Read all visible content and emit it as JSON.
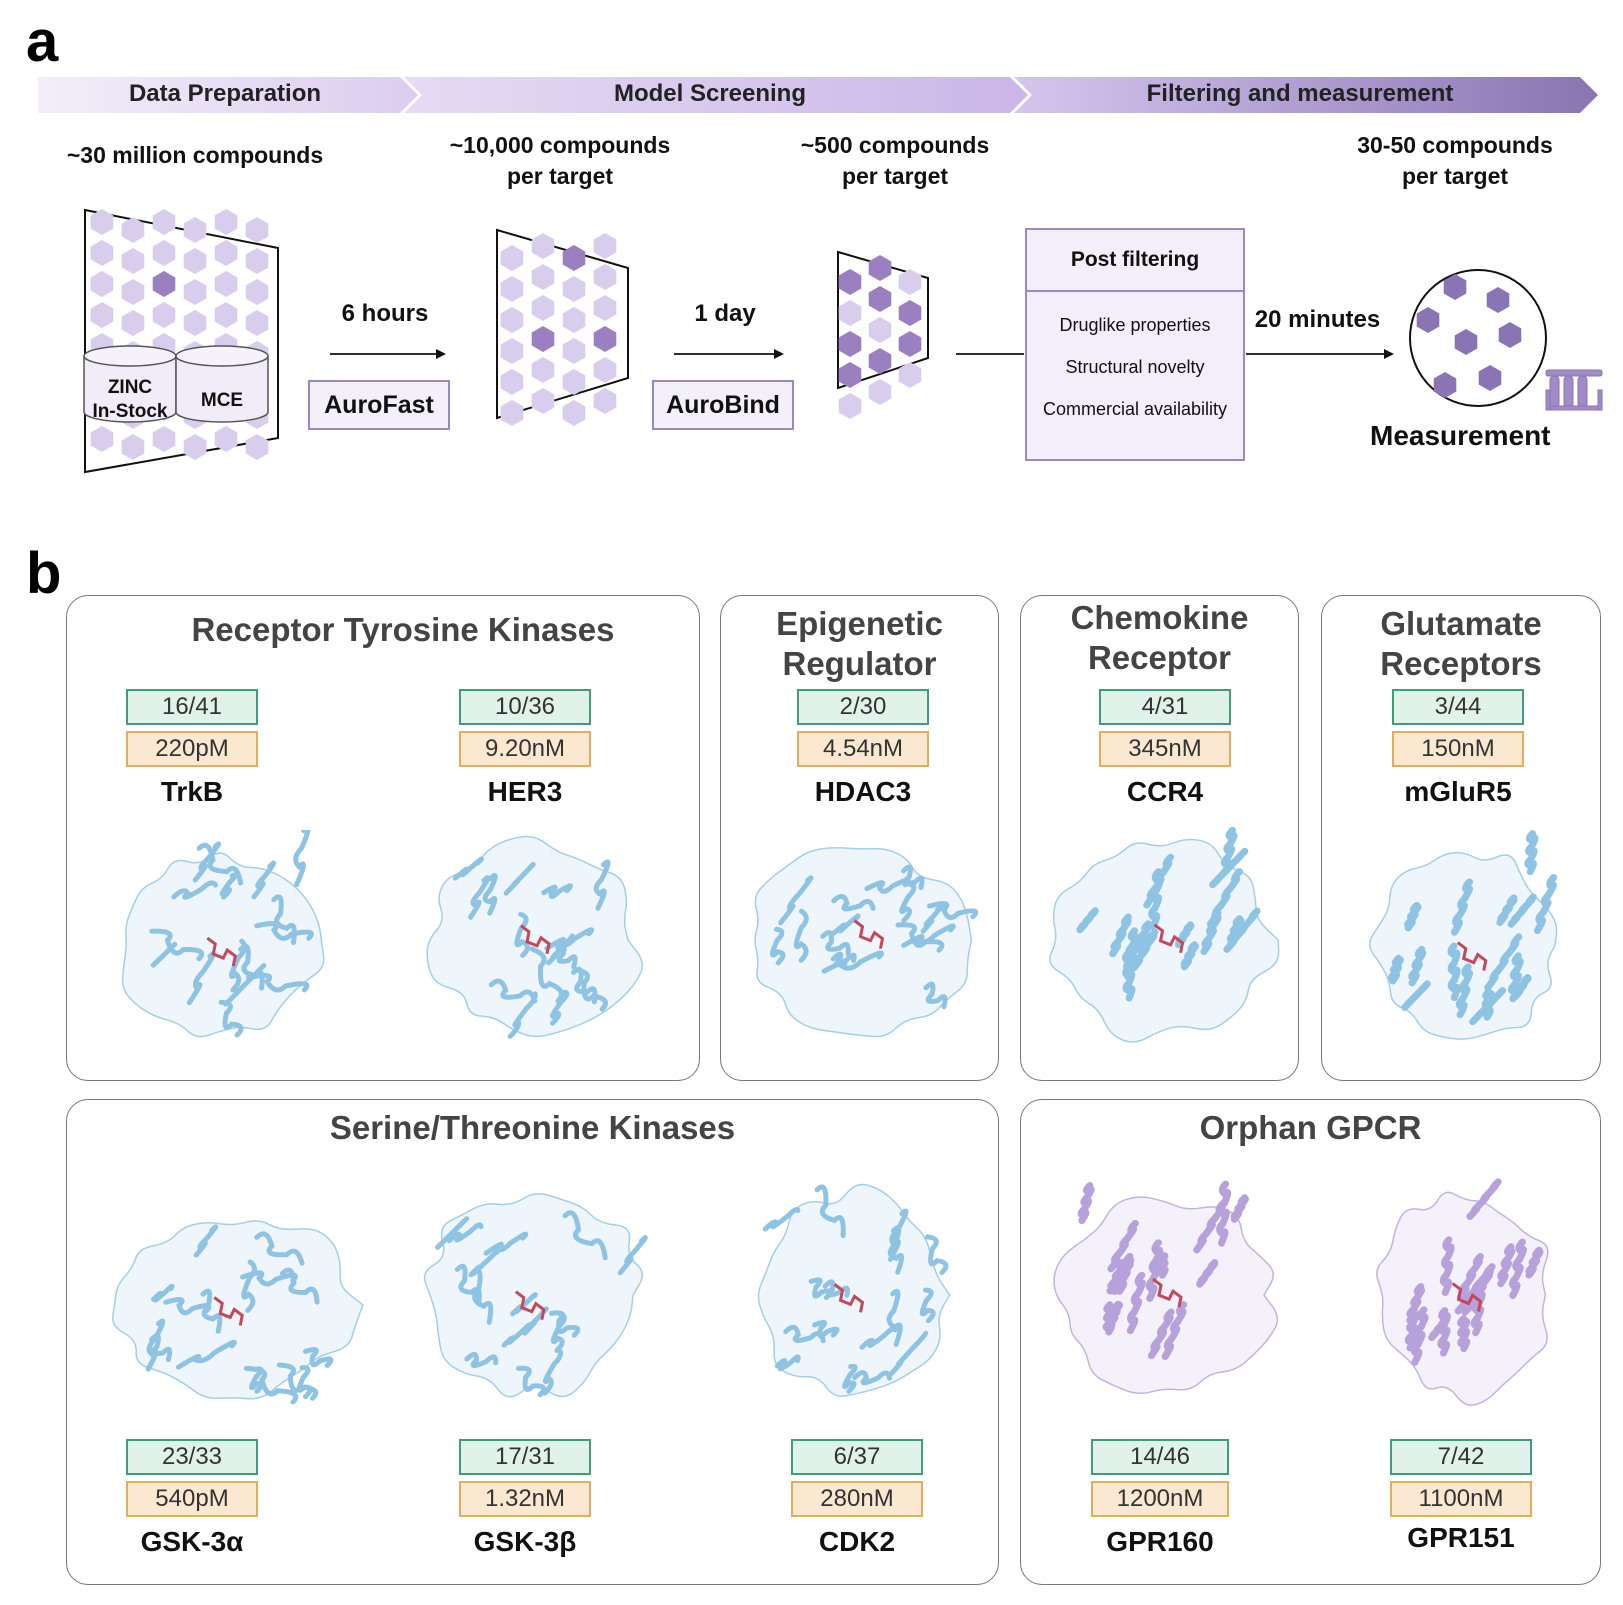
{
  "panel_a": {
    "letter": "a",
    "stages": [
      "Data Preparation",
      "Model Screening",
      "Filtering and measurement"
    ],
    "counts": {
      "start": "~30 million compounds",
      "after_aurofast": [
        "~10,000 compounds",
        "per target"
      ],
      "after_aurobind": [
        "~500 compounds",
        "per target"
      ],
      "final": [
        "30-50 compounds",
        "per target"
      ]
    },
    "databases": [
      "ZINC",
      "In-Stock",
      "MCE"
    ],
    "times": [
      "6 hours",
      "1 day",
      "20 minutes"
    ],
    "models": [
      "AuroFast",
      "AuroBind"
    ],
    "post_filtering": {
      "title": "Post filtering",
      "items": [
        "Druglike properties",
        "Structural novelty",
        "Commercial availability"
      ]
    },
    "measurement_label": "Measurement",
    "colors": {
      "purple_dark": "#9a80c0",
      "purple_light": "#d9cdee",
      "arrow_end": "#8a74b3"
    }
  },
  "panel_b": {
    "letter": "b",
    "groups": [
      {
        "title": "Receptor Tyrosine Kinases",
        "color": "#8fc3e3",
        "targets": [
          {
            "name": "TrkB",
            "hit_rate": "16/41",
            "affinity": "220pM"
          },
          {
            "name": "HER3",
            "hit_rate": "10/36",
            "affinity": "9.20nM"
          }
        ]
      },
      {
        "title": [
          "Epigenetic",
          "Regulator"
        ],
        "color": "#8fc3e3",
        "targets": [
          {
            "name": "HDAC3",
            "hit_rate": "2/30",
            "affinity": "4.54nM"
          }
        ]
      },
      {
        "title": [
          "Chemokine",
          "Receptor"
        ],
        "color": "#8fc3e3",
        "targets": [
          {
            "name": "CCR4",
            "hit_rate": "4/31",
            "affinity": "345nM"
          }
        ]
      },
      {
        "title": [
          "Glutamate",
          "Receptors"
        ],
        "color": "#8fc3e3",
        "targets": [
          {
            "name": "mGluR5",
            "hit_rate": "3/44",
            "affinity": "150nM"
          }
        ]
      },
      {
        "title": "Serine/Threonine Kinases",
        "color": "#8fc3e3",
        "targets": [
          {
            "name": "GSK-3α",
            "hit_rate": "23/33",
            "affinity": "540pM"
          },
          {
            "name": "GSK-3β",
            "hit_rate": "17/31",
            "affinity": "1.32nM"
          },
          {
            "name": "CDK2",
            "hit_rate": "6/37",
            "affinity": "280nM"
          }
        ]
      },
      {
        "title": "Orphan GPCR",
        "color": "#b7a1db",
        "targets": [
          {
            "name": "GPR160",
            "hit_rate": "14/46",
            "affinity": "1200nM"
          },
          {
            "name": "GPR151",
            "hit_rate": "7/42",
            "affinity": "1100nM"
          }
        ]
      }
    ]
  }
}
